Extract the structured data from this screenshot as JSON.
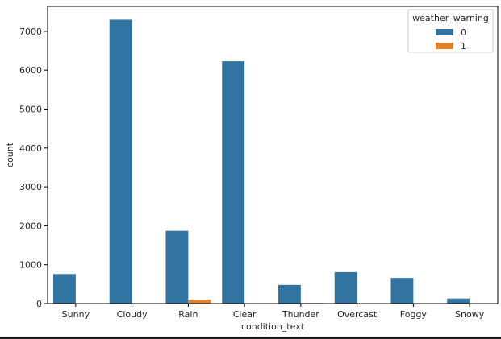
{
  "chart_data": {
    "type": "bar",
    "title": "",
    "xlabel": "condition_text",
    "ylabel": "count",
    "categories": [
      "Sunny",
      "Cloudy",
      "Rain",
      "Clear",
      "Thunder",
      "Overcast",
      "Foggy",
      "Snowy"
    ],
    "series": [
      {
        "name": "0",
        "color": "#3274a1",
        "values": [
          760,
          7300,
          1870,
          6230,
          480,
          810,
          660,
          130
        ]
      },
      {
        "name": "1",
        "color": "#e1812c",
        "values": [
          0,
          0,
          100,
          0,
          15,
          0,
          0,
          10
        ]
      }
    ],
    "ylim": [
      0,
      7640
    ],
    "yticks": [
      0,
      1000,
      2000,
      3000,
      4000,
      5000,
      6000,
      7000
    ],
    "grid": false,
    "legend": {
      "title": "weather_warning",
      "placement": "top-right"
    }
  }
}
